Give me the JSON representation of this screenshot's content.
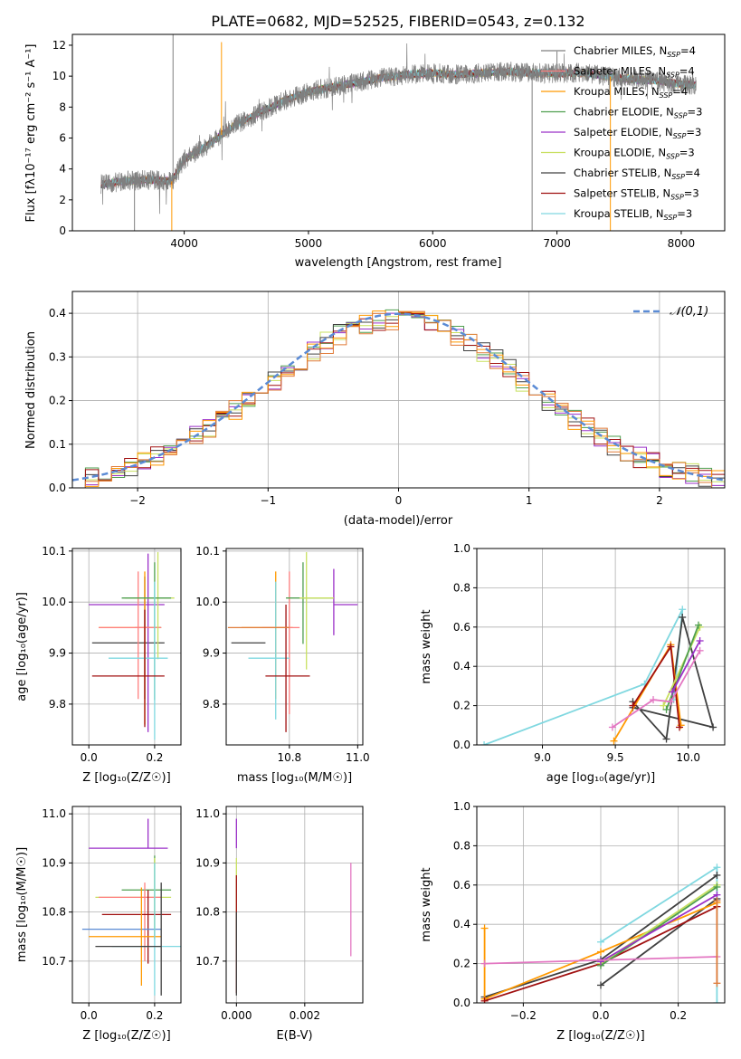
{
  "figure_title": "PLATE=0682, MJD=52525, FIBERID=0543, z=0.132",
  "colors": {
    "chabrier_miles": "#7f7f7f",
    "salpeter_miles": "#ff7f7f",
    "kroupa_miles": "#ff9900",
    "chabrier_elodie": "#4f9f4f",
    "salpeter_elodie": "#9b30c8",
    "kroupa_elodie": "#c8e060",
    "chabrier_stelib": "#404040",
    "salpeter_stelib": "#a01010",
    "kroupa_stelib": "#80d8e0",
    "normal_curve": "#5b8bd5",
    "extra_pink": "#e377c2",
    "extra_blue": "#5b8bd5",
    "extra_orange": "#e07b39"
  },
  "chart_data": [
    {
      "id": "spectrum",
      "type": "line",
      "title": "PLATE=0682, MJD=52525, FIBERID=0543, z=0.132",
      "xlabel": "wavelength [Angstrom, rest frame]",
      "ylabel": "Flux [fλ10⁻¹⁷ erg cm⁻² s⁻¹ A⁻¹]",
      "xlim": [
        3100,
        8350
      ],
      "ylim": [
        0,
        12.7
      ],
      "xticks": [
        4000,
        5000,
        6000,
        7000,
        8000
      ],
      "yticks": [
        0,
        2,
        4,
        6,
        8,
        10,
        12
      ],
      "legend_position": "right",
      "legend": [
        {
          "label": "Chabrier MILES, N",
          "sub": "SSP",
          "tail": "=4",
          "color_key": "chabrier_miles"
        },
        {
          "label": "Salpeter MILES, N",
          "sub": "SSP",
          "tail": "=4",
          "color_key": "salpeter_miles"
        },
        {
          "label": "Kroupa MILES, N",
          "sub": "SSP",
          "tail": "=4",
          "color_key": "kroupa_miles"
        },
        {
          "label": "Chabrier ELODIE, N",
          "sub": "SSP",
          "tail": "=3",
          "color_key": "chabrier_elodie"
        },
        {
          "label": "Salpeter ELODIE, N",
          "sub": "SSP",
          "tail": "=3",
          "color_key": "salpeter_elodie"
        },
        {
          "label": "Kroupa ELODIE, N",
          "sub": "SSP",
          "tail": "=3",
          "color_key": "kroupa_elodie"
        },
        {
          "label": "Chabrier STELIB, N",
          "sub": "SSP",
          "tail": "=4",
          "color_key": "chabrier_stelib"
        },
        {
          "label": "Salpeter STELIB, N",
          "sub": "SSP",
          "tail": "=3",
          "color_key": "salpeter_stelib"
        },
        {
          "label": "Kroupa STELIB, N",
          "sub": "SSP",
          "tail": "=3",
          "color_key": "kroupa_stelib"
        }
      ],
      "data_trend": [
        {
          "x": 3330,
          "y": 3.0
        },
        {
          "x": 3500,
          "y": 3.2
        },
        {
          "x": 3700,
          "y": 3.3
        },
        {
          "x": 3900,
          "y": 3.2
        },
        {
          "x": 4000,
          "y": 4.6
        },
        {
          "x": 4200,
          "y": 5.6
        },
        {
          "x": 4400,
          "y": 6.8
        },
        {
          "x": 4600,
          "y": 7.6
        },
        {
          "x": 4800,
          "y": 8.4
        },
        {
          "x": 5000,
          "y": 9.0
        },
        {
          "x": 5200,
          "y": 9.3
        },
        {
          "x": 5400,
          "y": 9.6
        },
        {
          "x": 5600,
          "y": 9.9
        },
        {
          "x": 5800,
          "y": 10.1
        },
        {
          "x": 6000,
          "y": 10.2
        },
        {
          "x": 6200,
          "y": 10.1
        },
        {
          "x": 6400,
          "y": 10.2
        },
        {
          "x": 6600,
          "y": 10.3
        },
        {
          "x": 6800,
          "y": 10.2
        },
        {
          "x": 7000,
          "y": 10.2
        },
        {
          "x": 7200,
          "y": 10.2
        },
        {
          "x": 7400,
          "y": 10.0
        },
        {
          "x": 7600,
          "y": 9.8
        },
        {
          "x": 7800,
          "y": 9.7
        },
        {
          "x": 8000,
          "y": 9.5
        },
        {
          "x": 8120,
          "y": 9.4
        }
      ]
    },
    {
      "id": "residual_histogram",
      "type": "histogram",
      "xlabel": "(data-model)/error",
      "ylabel": "Normed distribution",
      "xlim": [
        -2.5,
        2.5
      ],
      "ylim": [
        0,
        0.45
      ],
      "xticks": [
        -2,
        -1,
        0,
        1,
        2
      ],
      "yticks": [
        0.0,
        0.1,
        0.2,
        0.3,
        0.4
      ],
      "grid": true,
      "legend_position": "top-right",
      "curve_label": "𝒩(0,1)",
      "bin_width": 0.1
    },
    {
      "id": "age_vs_z",
      "type": "errorbar",
      "xlabel": "Z [log₁₀(Z/Z☉)]",
      "ylabel": "age  [log₁₀(age/yr)]",
      "xlim": [
        -0.05,
        0.28
      ],
      "ylim": [
        9.72,
        10.105
      ],
      "xticks": [
        0.0,
        0.2
      ],
      "yticks": [
        9.8,
        9.9,
        10.0,
        10.1
      ],
      "points": [
        {
          "x": 0.22,
          "y": 9.95,
          "xerr": [
            0.08,
            0.0
          ],
          "yerr": [
            0.0,
            0.0
          ],
          "color_key": "extra_blue"
        },
        {
          "x": 0.17,
          "y": 9.92,
          "xerr": [
            0.16,
            0.06
          ],
          "yerr": [
            0.11,
            0.13
          ],
          "color_key": "chabrier_stelib"
        },
        {
          "x": 0.18,
          "y": 9.995,
          "xerr": [
            0.18,
            0.05
          ],
          "yerr": [
            0.25,
            0.1
          ],
          "color_key": "salpeter_elodie"
        },
        {
          "x": 0.17,
          "y": 9.95,
          "xerr": [
            0.14,
            0.05
          ],
          "yerr": [
            0.19,
            0.11
          ],
          "color_key": "kroupa_miles"
        },
        {
          "x": 0.15,
          "y": 9.95,
          "xerr": [
            0.12,
            0.07
          ],
          "yerr": [
            0.14,
            0.11
          ],
          "color_key": "salpeter_miles"
        },
        {
          "x": 0.21,
          "y": 10.008,
          "xerr": [
            0.1,
            0.05
          ],
          "yerr": [
            0.12,
            0.09
          ],
          "color_key": "kroupa_elodie"
        },
        {
          "x": 0.2,
          "y": 10.008,
          "xerr": [
            0.1,
            0.05
          ],
          "yerr": [
            0.2,
            0.07
          ],
          "color_key": "chabrier_elodie"
        },
        {
          "x": 0.2,
          "y": 9.89,
          "xerr": [
            0.14,
            0.04
          ],
          "yerr": [
            0.16,
            0.15
          ],
          "color_key": "kroupa_stelib"
        },
        {
          "x": 0.17,
          "y": 9.855,
          "xerr": [
            0.16,
            0.06
          ],
          "yerr": [
            0.1,
            0.13
          ],
          "color_key": "salpeter_stelib"
        }
      ]
    },
    {
      "id": "age_vs_mass",
      "type": "errorbar",
      "xlabel": "mass [log₁₀(M/M☉)]",
      "ylabel": "",
      "xlim": [
        10.615,
        11.015
      ],
      "ylim": [
        9.72,
        10.105
      ],
      "xticks": [
        10.8,
        11.0
      ],
      "yticks": [
        9.8,
        9.9,
        10.0,
        10.1
      ],
      "points": [
        {
          "x": 10.73,
          "y": 9.92,
          "xerr": [
            0.1,
            0.0
          ],
          "yerr": [
            0.0,
            0.0
          ],
          "color_key": "chabrier_stelib"
        },
        {
          "x": 10.76,
          "y": 9.95,
          "xerr": [
            0.1,
            0.05
          ],
          "yerr": [
            0.14,
            0.11
          ],
          "color_key": "kroupa_miles"
        },
        {
          "x": 10.8,
          "y": 9.95,
          "xerr": [
            0.08,
            0.03
          ],
          "yerr": [
            0.17,
            0.11
          ],
          "color_key": "salpeter_miles"
        },
        {
          "x": 10.76,
          "y": 9.89,
          "xerr": [
            0.08,
            0.04
          ],
          "yerr": [
            0.12,
            0.15
          ],
          "color_key": "kroupa_stelib"
        },
        {
          "x": 10.79,
          "y": 9.855,
          "xerr": [
            0.06,
            0.07
          ],
          "yerr": [
            0.11,
            0.14
          ],
          "color_key": "salpeter_stelib"
        },
        {
          "x": 10.84,
          "y": 10.008,
          "xerr": [
            0.05,
            0.09
          ],
          "yerr": [
            0.09,
            0.07
          ],
          "color_key": "chabrier_elodie"
        },
        {
          "x": 10.93,
          "y": 9.995,
          "xerr": [
            0.0,
            0.07
          ],
          "yerr": [
            0.06,
            0.07
          ],
          "color_key": "salpeter_elodie"
        },
        {
          "x": 10.85,
          "y": 10.008,
          "xerr": [
            0.02,
            0.08
          ],
          "yerr": [
            0.14,
            0.09
          ],
          "color_key": "kroupa_elodie"
        },
        {
          "x": 10.74,
          "y": 9.95,
          "xerr": [
            0.12,
            0.06
          ],
          "yerr": [
            0.0,
            0.0
          ],
          "color_key": "extra_orange"
        }
      ]
    },
    {
      "id": "mass_weight_vs_age",
      "type": "line",
      "xlabel": "age  [log₁₀(age/yr)]",
      "ylabel": "mass weight",
      "xlim": [
        8.55,
        10.25
      ],
      "ylim": [
        0,
        1
      ],
      "xticks": [
        9.0,
        9.5,
        10.0
      ],
      "yticks": [
        0.0,
        0.2,
        0.4,
        0.6,
        0.8,
        1.0
      ],
      "grid": true,
      "series": [
        {
          "color_key": "kroupa_stelib",
          "x": [
            8.6,
            9.7,
            9.96,
            9.9
          ],
          "y": [
            0.0,
            0.31,
            0.69,
            0.23
          ]
        },
        {
          "color_key": "chabrier_stelib",
          "x": [
            9.62,
            9.85,
            9.96,
            10.17,
            9.62
          ],
          "y": [
            0.22,
            0.03,
            0.65,
            0.09,
            0.19
          ]
        },
        {
          "color_key": "kroupa_miles",
          "x": [
            9.49,
            9.88,
            9.95
          ],
          "y": [
            0.02,
            0.51,
            0.1
          ]
        },
        {
          "color_key": "salpeter_stelib",
          "x": [
            9.62,
            9.88,
            9.94
          ],
          "y": [
            0.2,
            0.5,
            0.09
          ]
        },
        {
          "color_key": "kroupa_elodie",
          "x": [
            9.83,
            10.08
          ],
          "y": [
            0.2,
            0.6
          ]
        },
        {
          "color_key": "chabrier_elodie",
          "x": [
            9.85,
            10.07
          ],
          "y": [
            0.18,
            0.61
          ]
        },
        {
          "color_key": "salpeter_elodie",
          "x": [
            9.89,
            10.08
          ],
          "y": [
            0.27,
            0.53
          ]
        },
        {
          "color_key": "extra_pink",
          "x": [
            9.48,
            9.76,
            9.88,
            10.08
          ],
          "y": [
            0.09,
            0.23,
            0.22,
            0.48
          ]
        }
      ]
    },
    {
      "id": "mass_vs_z",
      "type": "errorbar",
      "xlabel": "Z [log₁₀(Z/Z☉)]",
      "ylabel": "mass [log₁₀(M/M☉)]",
      "xlim": [
        -0.05,
        0.28
      ],
      "ylim": [
        10.615,
        11.015
      ],
      "xticks": [
        0.0,
        0.2
      ],
      "yticks": [
        10.7,
        10.8,
        10.9,
        11.0
      ],
      "points": [
        {
          "x": 0.18,
          "y": 10.93,
          "xerr": [
            0.18,
            0.06
          ],
          "yerr": [
            0.0,
            0.06
          ],
          "color_key": "salpeter_elodie"
        },
        {
          "x": 0.2,
          "y": 10.845,
          "xerr": [
            0.1,
            0.05
          ],
          "yerr": [
            0.1,
            0.07
          ],
          "color_key": "chabrier_elodie"
        },
        {
          "x": 0.2,
          "y": 10.83,
          "xerr": [
            0.18,
            0.05
          ],
          "yerr": [
            0.07,
            0.08
          ],
          "color_key": "kroupa_elodie"
        },
        {
          "x": 0.17,
          "y": 10.83,
          "xerr": [
            0.14,
            0.05
          ],
          "yerr": [
            0.13,
            0.03
          ],
          "color_key": "salpeter_miles"
        },
        {
          "x": 0.18,
          "y": 10.795,
          "xerr": [
            0.14,
            0.07
          ],
          "yerr": [
            0.1,
            0.05
          ],
          "color_key": "salpeter_stelib"
        },
        {
          "x": 0.2,
          "y": 10.765,
          "xerr": [
            0.22,
            0.02
          ],
          "yerr": [
            0.0,
            0.0
          ],
          "color_key": "extra_blue"
        },
        {
          "x": 0.16,
          "y": 10.75,
          "xerr": [
            0.16,
            0.06
          ],
          "yerr": [
            0.1,
            0.1
          ],
          "color_key": "kroupa_miles"
        },
        {
          "x": 0.2,
          "y": 10.73,
          "xerr": [
            0.13,
            0.08
          ],
          "yerr": [
            0.1,
            0.17
          ],
          "color_key": "kroupa_stelib"
        },
        {
          "x": 0.22,
          "y": 10.73,
          "xerr": [
            0.2,
            0.0
          ],
          "yerr": [
            0.1,
            0.13
          ],
          "color_key": "chabrier_stelib"
        }
      ]
    },
    {
      "id": "mass_vs_ebv",
      "type": "errorbar",
      "xlabel": "E(B-V)",
      "ylabel": "",
      "xlim": [
        -0.0003,
        0.0037
      ],
      "ylim": [
        10.615,
        11.015
      ],
      "xticks": [
        0.0,
        0.002
      ],
      "yticks": [
        10.7,
        10.8,
        10.9,
        11.0
      ],
      "points": [
        {
          "x": 0.0,
          "y": 10.93,
          "xerr": [
            0.0,
            0.0
          ],
          "yerr": [
            0.0,
            0.06
          ],
          "color_key": "salpeter_elodie"
        },
        {
          "x": 0.0,
          "y": 10.83,
          "xerr": [
            0.0,
            0.0
          ],
          "yerr": [
            0.1,
            0.08
          ],
          "color_key": "kroupa_elodie"
        },
        {
          "x": 0.0,
          "y": 10.795,
          "xerr": [
            0.0,
            0.0
          ],
          "yerr": [
            0.16,
            0.08
          ],
          "color_key": "salpeter_stelib"
        },
        {
          "x": 0.0,
          "y": 10.73,
          "xerr": [
            0.0,
            0.0
          ],
          "yerr": [
            0.1,
            0.07
          ],
          "color_key": "chabrier_stelib"
        },
        {
          "x": 0.00335,
          "y": 10.8,
          "xerr": [
            0.0,
            0.0
          ],
          "yerr": [
            0.09,
            0.1
          ],
          "color_key": "extra_pink"
        }
      ]
    },
    {
      "id": "mass_weight_vs_z",
      "type": "line",
      "xlabel": "Z [log₁₀(Z/Z☉)]",
      "ylabel": "mass weight",
      "xlim": [
        -0.32,
        0.32
      ],
      "ylim": [
        0,
        1
      ],
      "xticks": [
        -0.2,
        0.0,
        0.2
      ],
      "yticks": [
        0.0,
        0.2,
        0.4,
        0.6,
        0.8,
        1.0
      ],
      "grid": true,
      "series": [
        {
          "color_key": "kroupa_stelib",
          "x": [
            0.0,
            0.3,
            0.3
          ],
          "y": [
            0.31,
            0.69,
            0.0
          ]
        },
        {
          "color_key": "chabrier_stelib",
          "x": [
            -0.3,
            0.0,
            0.3
          ],
          "y": [
            0.03,
            0.22,
            0.65
          ]
        },
        {
          "color_key": "chabrier_stelib",
          "x": [
            0.0,
            0.3
          ],
          "y": [
            0.09,
            0.53
          ]
        },
        {
          "color_key": "kroupa_miles",
          "x": [
            -0.3,
            -0.3,
            0.0,
            0.3
          ],
          "y": [
            0.38,
            0.02,
            0.26,
            0.51
          ]
        },
        {
          "color_key": "salpeter_stelib",
          "x": [
            -0.3,
            0.0,
            0.3
          ],
          "y": [
            0.01,
            0.2,
            0.49
          ]
        },
        {
          "color_key": "kroupa_elodie",
          "x": [
            0.0,
            0.3
          ],
          "y": [
            0.2,
            0.6
          ]
        },
        {
          "color_key": "chabrier_elodie",
          "x": [
            0.0,
            0.3
          ],
          "y": [
            0.19,
            0.59
          ]
        },
        {
          "color_key": "salpeter_elodie",
          "x": [
            0.0,
            0.3
          ],
          "y": [
            0.21,
            0.55
          ]
        },
        {
          "color_key": "extra_pink",
          "x": [
            -0.3,
            0.3
          ],
          "y": [
            0.2,
            0.235
          ]
        },
        {
          "color_key": "extra_orange",
          "x": [
            0.3,
            0.3
          ],
          "y": [
            0.1,
            0.52
          ]
        }
      ]
    }
  ]
}
